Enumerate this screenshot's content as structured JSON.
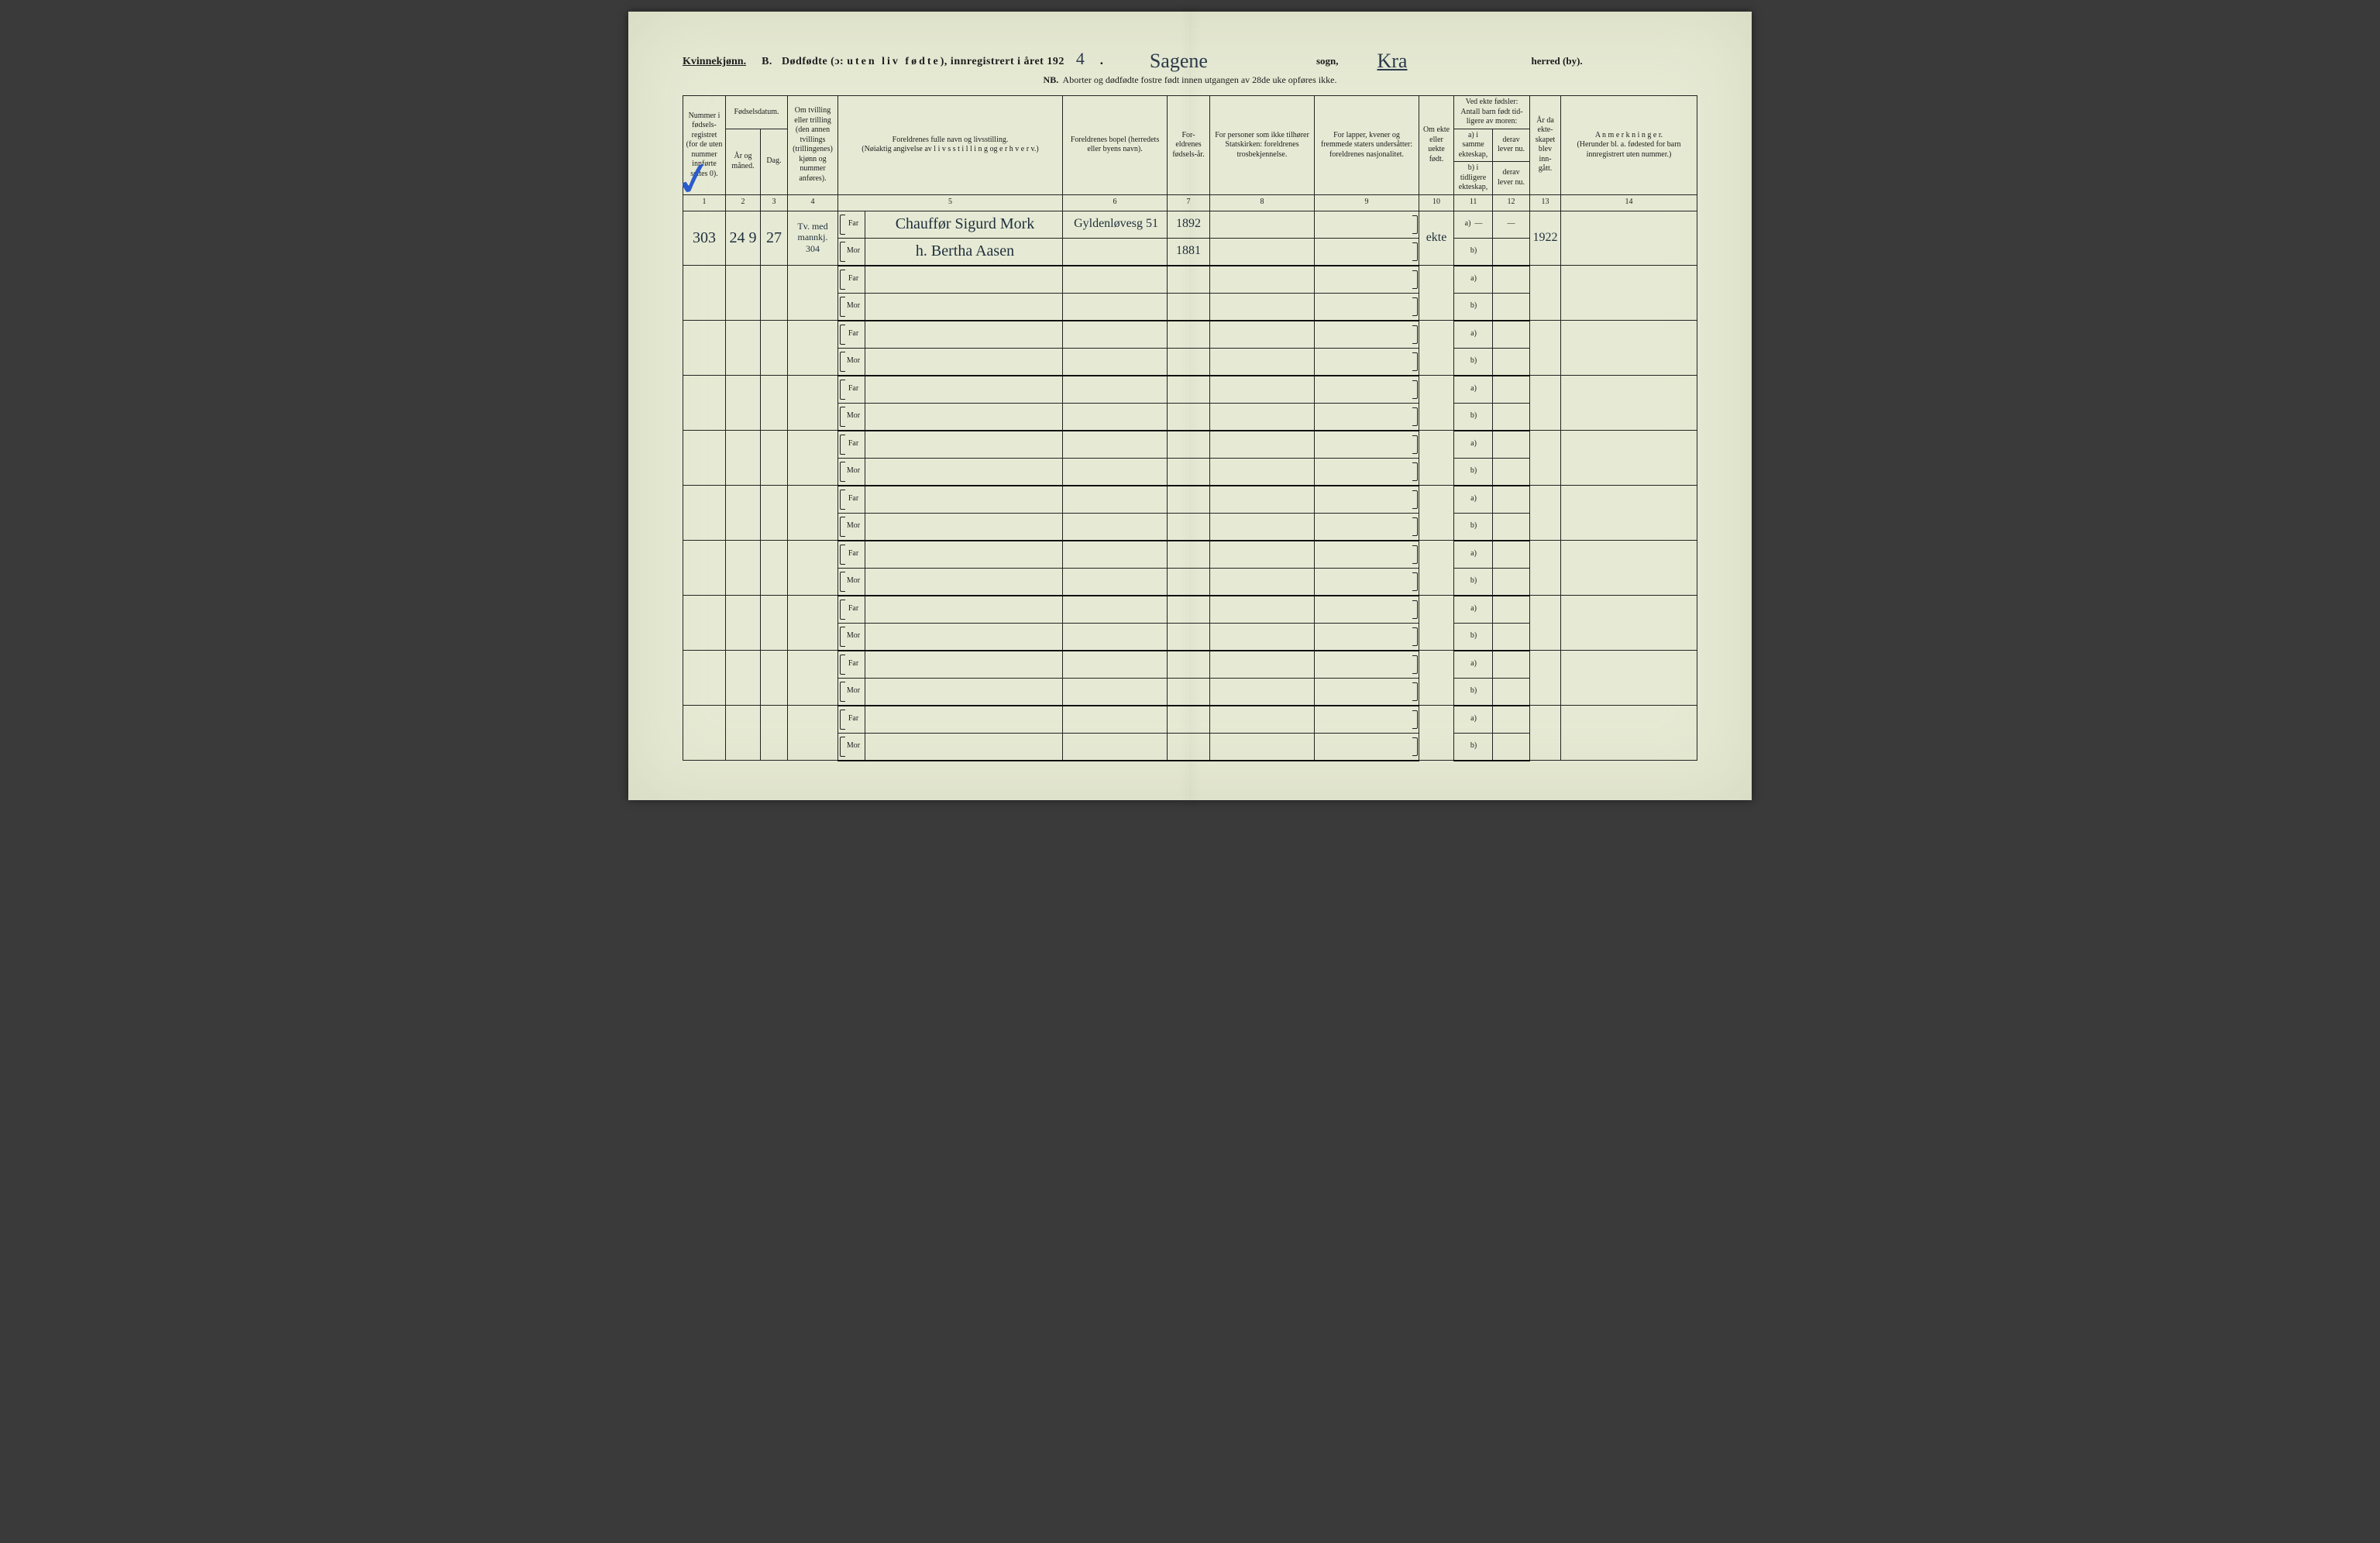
{
  "background_color": "#e6ead4",
  "ink_color": "#1c1c1c",
  "script_color": "#2b3a4a",
  "check_color": "#2a5bcc",
  "header": {
    "gender": "Kvinnekjønn.",
    "section_letter": "B.",
    "title_main": "Dødfødte (ɔ:",
    "title_spaced": "uten liv fødte",
    "title_tail": "), innregistrert i året 192",
    "year_digit": "4",
    "sogn_hand": "Sagene",
    "sogn_label": "sogn,",
    "herred_hand": "Kra",
    "herred_label": "herred (by).",
    "nb_prefix": "NB.",
    "nb_text": "Aborter og dødfødte fostre født innen utgangen av 28de uke opføres ikke."
  },
  "columns": {
    "c1": "Nummer i fødsels-registret (for de uten nummer innførte settes 0).",
    "c23_top": "Fødselsdatum.",
    "c2": "År og måned.",
    "c3": "Dag.",
    "c4": "Om tvilling eller trilling (den annen tvillings (trillingenes) kjønn og nummer anføres).",
    "c5": "Foreldrenes fulle navn og livsstilling.\n(Nøiaktig angivelse av  l i v s s t i l l i n g  og  e r h v e r v.)",
    "c6": "Foreldrenes bopel (herredets eller byens navn).",
    "c7": "For-eldrenes fødsels-år.",
    "c8": "For personer som ikke tilhører Statskirken: foreldrenes trosbekjennelse.",
    "c9": "For lapper, kvener og fremmede staters undersåtter: foreldrenes nasjonalitet.",
    "c10": "Om ekte eller uekte født.",
    "c11_12_top": "Ved ekte fødsler: Antall barn født tid-ligere av moren:",
    "c11a": "a) i samme ekteskap,",
    "c11d": "derav lever nu.",
    "c11b": "b) i tidligere ekteskap,",
    "c12d": "derav lever nu.",
    "c13": "År da ekte-skapet blev inn-gått.",
    "c14": "A n m e r k n i n g e r.\n(Herunder bl. a. fødested for barn innregistrert uten nummer.)"
  },
  "colnums": [
    "1",
    "2",
    "3",
    "4",
    "5",
    "6",
    "7",
    "8",
    "9",
    "10",
    "11",
    "12",
    "13",
    "14"
  ],
  "far": "Far",
  "mor": "Mor",
  "a_label": "a)",
  "b_label": "b)",
  "dash": "—",
  "entry": {
    "check": "✓",
    "number": "303",
    "year_month": "24  9",
    "day": "27",
    "twin": "Tv. med mannkj. 304",
    "father_name": "Chauffør Sigurd Mork",
    "mother_name": "h.  Bertha Aasen",
    "residence": "Gyldenløvesg 51",
    "father_birth": "1892",
    "mother_birth": "1881",
    "ekte": "ekte",
    "marriage_year": "1922"
  },
  "blank_rows": 9
}
